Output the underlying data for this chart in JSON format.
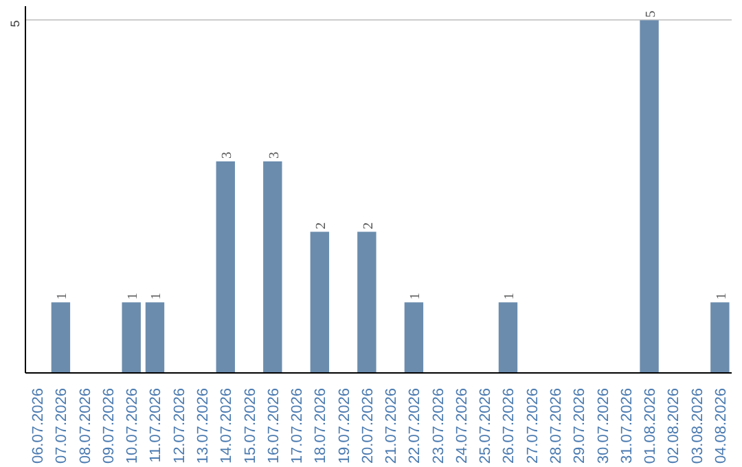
{
  "chart_data": {
    "type": "bar",
    "categories": [
      "06.07.2026",
      "07.07.2026",
      "08.07.2026",
      "09.07.2026",
      "10.07.2026",
      "11.07.2026",
      "12.07.2026",
      "13.07.2026",
      "14.07.2026",
      "15.07.2026",
      "16.07.2026",
      "17.07.2026",
      "18.07.2026",
      "19.07.2026",
      "20.07.2026",
      "21.07.2026",
      "22.07.2026",
      "23.07.2026",
      "24.07.2026",
      "25.07.2026",
      "26.07.2026",
      "27.07.2026",
      "28.07.2026",
      "29.07.2026",
      "30.07.2026",
      "31.07.2026",
      "01.08.2026",
      "02.08.2026",
      "03.08.2026",
      "04.08.2026"
    ],
    "values": [
      0,
      1,
      0,
      0,
      1,
      1,
      0,
      0,
      3,
      0,
      3,
      0,
      2,
      0,
      2,
      0,
      1,
      0,
      0,
      0,
      1,
      0,
      0,
      0,
      0,
      0,
      5,
      0,
      0,
      1
    ],
    "value_labels": [
      null,
      "1",
      null,
      null,
      "1",
      "1",
      null,
      null,
      "3",
      null,
      "3",
      null,
      "2",
      null,
      "2",
      null,
      "1",
      null,
      null,
      null,
      "1",
      null,
      null,
      null,
      null,
      null,
      "5",
      null,
      null,
      "1"
    ],
    "color": "#6b8cad",
    "ylim": [
      0,
      5.2
    ],
    "yticks": [
      5
    ],
    "grid": "y"
  }
}
